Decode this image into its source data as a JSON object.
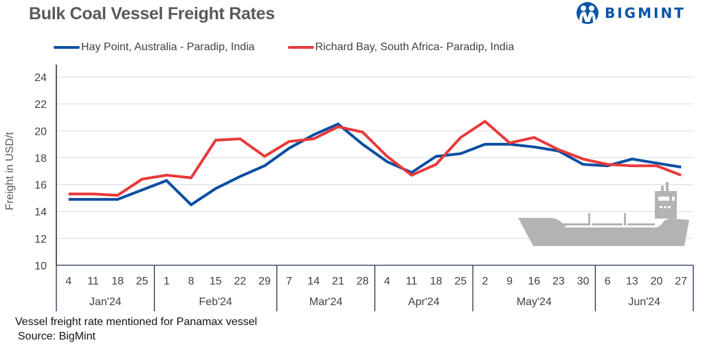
{
  "header": {
    "title": "Bulk Coal Vessel Freight Rates",
    "logo_text": "BIGMINT",
    "logo_icon": "bigmint-people-icon"
  },
  "footnote": {
    "line1": "Vessel freight rate mentioned for Panamax  vessel",
    "line2": "Source: BigMint"
  },
  "decoration": {
    "ship_icon": "cargo-ship-icon"
  },
  "colors": {
    "series_blue": "#0a4ea2",
    "series_red": "#e83a3a",
    "grid": "#d9d9d9",
    "ship": "#b3b3b3",
    "axis_box": "#1f2d4d",
    "logo": "#0a55a8"
  },
  "chart_data": {
    "type": "line",
    "title": "Bulk Coal Vessel Freight Rates",
    "xlabel": "",
    "ylabel": "Freight  in USD/t",
    "ylim": [
      10,
      24
    ],
    "yticks": [
      10,
      12,
      14,
      16,
      18,
      20,
      22,
      24
    ],
    "grid": true,
    "legend_position": "top",
    "categories": [
      "4",
      "11",
      "18",
      "25",
      "1",
      "8",
      "15",
      "22",
      "29",
      "7",
      "14",
      "21",
      "28",
      "4",
      "11",
      "18",
      "25",
      "2",
      "9",
      "16",
      "23",
      "30",
      "6",
      "13",
      "20",
      "27"
    ],
    "groups": [
      {
        "label": "Jan'24",
        "count": 4
      },
      {
        "label": "Feb'24",
        "count": 5
      },
      {
        "label": "Mar'24",
        "count": 4
      },
      {
        "label": "Apr'24",
        "count": 4
      },
      {
        "label": "May'24",
        "count": 5
      },
      {
        "label": "Jun'24",
        "count": 4
      }
    ],
    "series": [
      {
        "name": "Hay Point, Australia - Paradip, India",
        "color": "#0a4ea2",
        "values": [
          14.9,
          14.9,
          14.9,
          15.6,
          16.3,
          14.5,
          15.7,
          16.6,
          17.4,
          18.7,
          19.7,
          20.5,
          19.0,
          17.7,
          16.9,
          18.1,
          18.3,
          19.0,
          19.0,
          18.8,
          18.5,
          17.5,
          17.4,
          17.9,
          17.6,
          17.3
        ]
      },
      {
        "name": "Richard Bay, South Africa- Paradip, India",
        "color": "#e83a3a",
        "values": [
          15.3,
          15.3,
          15.2,
          16.4,
          16.7,
          16.5,
          19.3,
          19.4,
          18.1,
          19.2,
          19.4,
          20.3,
          19.9,
          18.1,
          16.7,
          17.5,
          19.5,
          20.7,
          19.1,
          19.5,
          18.6,
          17.9,
          17.5,
          17.4,
          17.4,
          16.7
        ]
      }
    ]
  }
}
